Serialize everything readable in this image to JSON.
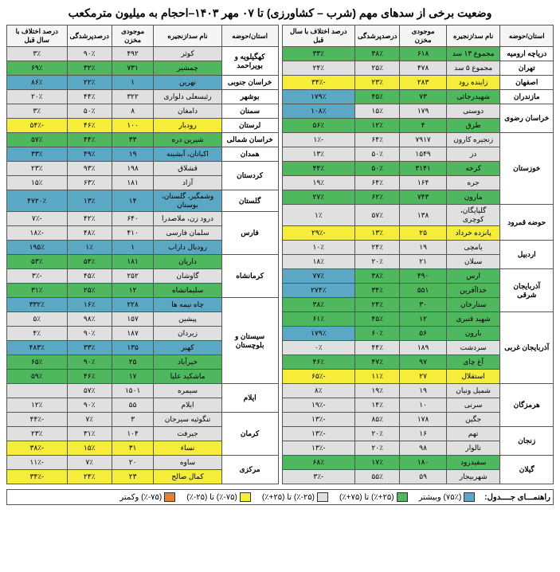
{
  "title": "وضعیت برخی از سدهای مهم (شرب – کشاورزی) تا ۰۷ مهر ۱۴۰۳–احجام به میلیون مترمکعب",
  "headers": {
    "province": "استان/حوضه",
    "dam": "نام سد/زنجیره",
    "volume": "موجودی مخزن",
    "fill": "درصدپرشدگی",
    "diff": "درصد اختلاف با سال قبل"
  },
  "colors": {
    "blue": "#5ba8c4",
    "green": "#4fb85f",
    "gray": "#e0e0e0",
    "yellow": "#f5ed3a",
    "orange": "#e08030"
  },
  "legend": {
    "label": "راهنمـــای جــــدول:",
    "items": [
      {
        "txt": "(۷۵٪) وبیشتر",
        "c": "blue"
      },
      {
        "txt": "(۲۵+٪) تا (۷۵+٪)",
        "c": "green"
      },
      {
        "txt": "(۲۵-٪) تا (۲۵+٪)",
        "c": "gray"
      },
      {
        "txt": "(۷۵-٪) تا (۲۵-٪)",
        "c": "yellow"
      },
      {
        "txt": "(۷۵-٪) وکمتر",
        "c": "orange"
      }
    ]
  },
  "right": [
    {
      "prov": "دریاچه ارومیه",
      "rows": [
        {
          "n": "مجموع ۱۳ سد",
          "v": "۶۱۸",
          "f": "۳۸٪",
          "d": "۳۳٪",
          "cv": "green",
          "cf": "green",
          "cd": "green"
        }
      ]
    },
    {
      "prov": "تهران",
      "rows": [
        {
          "n": "مجموع ۵ سد",
          "v": "۴۷۸",
          "f": "۲۵٪",
          "d": "۲۴٪",
          "cv": "gray",
          "cf": "gray",
          "cd": "gray"
        }
      ]
    },
    {
      "prov": "اصفهان",
      "rows": [
        {
          "n": "زاینده رود",
          "v": "۲۸۳",
          "f": "۲۳٪",
          "d": "-۳۴٪",
          "cv": "yellow",
          "cf": "yellow",
          "cd": "yellow"
        }
      ]
    },
    {
      "prov": "مازندران",
      "rows": [
        {
          "n": "شهیدرجائی",
          "v": "۷۳",
          "f": "۴۵٪",
          "d": "۱۷۹٪",
          "cv": "green",
          "cf": "green",
          "cd": "blue"
        }
      ]
    },
    {
      "prov": "خراسان رضوی",
      "rows": [
        {
          "n": "دوستی",
          "v": "۱۷۹",
          "f": "۱۵٪",
          "d": "۱۰۸٪",
          "cv": "gray",
          "cf": "gray",
          "cd": "blue"
        },
        {
          "n": "طرق",
          "v": "۴",
          "f": "۱۲٪",
          "d": "۵۶٪",
          "cv": "green",
          "cf": "green",
          "cd": "green"
        }
      ]
    },
    {
      "prov": "خوزستان",
      "rows": [
        {
          "n": "زنجیره کارون",
          "v": "۷۹۱۷",
          "f": "۶۴٪",
          "d": "-۱٪",
          "cv": "gray",
          "cf": "gray",
          "cd": "gray"
        },
        {
          "n": "دز",
          "v": "۱۵۴۹",
          "f": "۵۰٪",
          "d": "۱۳٪",
          "cv": "gray",
          "cf": "gray",
          "cd": "gray"
        },
        {
          "n": "کرخه",
          "v": "۳۱۴۱",
          "f": "۵۰٪",
          "d": "۴۴٪",
          "cv": "green",
          "cf": "green",
          "cd": "green"
        },
        {
          "n": "جره",
          "v": "۱۶۴",
          "f": "۶۴٪",
          "d": "۱۹٪",
          "cv": "gray",
          "cf": "gray",
          "cd": "gray"
        },
        {
          "n": "مارون",
          "v": "۷۴۳",
          "f": "۶۲٪",
          "d": "۲۷٪",
          "cv": "green",
          "cf": "green",
          "cd": "green"
        }
      ]
    },
    {
      "prov": "حوضه قمرود",
      "rows": [
        {
          "n": "گلپایگان، کوچری",
          "v": "۱۳۸",
          "f": "۵۷٪",
          "d": "۱٪",
          "cv": "gray",
          "cf": "gray",
          "cd": "gray"
        },
        {
          "n": "پانزده خرداد",
          "v": "۲۵",
          "f": "۱۳٪",
          "d": "-۲۹٪",
          "cv": "yellow",
          "cf": "yellow",
          "cd": "yellow"
        }
      ]
    },
    {
      "prov": "اردبیل",
      "rows": [
        {
          "n": "یامچی",
          "v": "۱۹",
          "f": "۲۴٪",
          "d": "۱۰٪",
          "cv": "gray",
          "cf": "gray",
          "cd": "gray"
        },
        {
          "n": "سبلان",
          "v": "۲۱",
          "f": "۲۰٪",
          "d": "۱۸٪",
          "cv": "gray",
          "cf": "gray",
          "cd": "gray"
        }
      ]
    },
    {
      "prov": "آذربایجان شرقی",
      "rows": [
        {
          "n": "ارس",
          "v": "۴۹۰",
          "f": "۳۸٪",
          "d": "۷۷٪",
          "cv": "green",
          "cf": "green",
          "cd": "blue"
        },
        {
          "n": "خداآفرین",
          "v": "۵۵۱",
          "f": "۳۴٪",
          "d": "۲۷۴٪",
          "cv": "green",
          "cf": "green",
          "cd": "blue"
        },
        {
          "n": "ستارخان",
          "v": "۳۰",
          "f": "۲۴٪",
          "d": "۳۸٪",
          "cv": "green",
          "cf": "green",
          "cd": "green"
        }
      ]
    },
    {
      "prov": "آذربایجان غربی",
      "rows": [
        {
          "n": "شهید قنبری",
          "v": "۱۲",
          "f": "۴۵٪",
          "d": "۶۱٪",
          "cv": "green",
          "cf": "green",
          "cd": "green"
        },
        {
          "n": "بارون",
          "v": "۵۶",
          "f": "۶۰٪",
          "d": "۱۷۹٪",
          "cv": "green",
          "cf": "green",
          "cd": "blue"
        },
        {
          "n": "سردشت",
          "v": "۱۸۹",
          "f": "۴۴٪",
          "d": "۰٪",
          "cv": "gray",
          "cf": "gray",
          "cd": "gray"
        },
        {
          "n": "آغ چای",
          "v": "۹۷",
          "f": "۴۷٪",
          "d": "۴۶٪",
          "cv": "green",
          "cf": "green",
          "cd": "green"
        },
        {
          "n": "استقلال",
          "v": "۲۷",
          "f": "۱۱٪",
          "d": "-۶۵٪",
          "cv": "yellow",
          "cf": "yellow",
          "cd": "yellow"
        }
      ]
    },
    {
      "prov": "هرمزگان",
      "rows": [
        {
          "n": "شمیل ونیان",
          "v": "۱۹",
          "f": "۱۹٪",
          "d": "۸٪",
          "cv": "gray",
          "cf": "gray",
          "cd": "gray"
        },
        {
          "n": "سرنی",
          "v": "۱۰",
          "f": "۱۴٪",
          "d": "-۱۹٪",
          "cv": "gray",
          "cf": "gray",
          "cd": "gray"
        },
        {
          "n": "جگین",
          "v": "۱۷۸",
          "f": "۸۵٪",
          "d": "-۱۳٪",
          "cv": "gray",
          "cf": "gray",
          "cd": "gray"
        }
      ]
    },
    {
      "prov": "زنجان",
      "rows": [
        {
          "n": "تهم",
          "v": "۱۶",
          "f": "۲۰٪",
          "d": "-۱۳٪",
          "cv": "gray",
          "cf": "gray",
          "cd": "gray"
        },
        {
          "n": "تالوار",
          "v": "۹۸",
          "f": "۲۰٪",
          "d": "-۱۳٪",
          "cv": "gray",
          "cf": "gray",
          "cd": "gray"
        }
      ]
    },
    {
      "prov": "گیلان",
      "rows": [
        {
          "n": "سفیدرود",
          "v": "۱۸۰",
          "f": "۱۷٪",
          "d": "۶۸٪",
          "cv": "green",
          "cf": "green",
          "cd": "green"
        },
        {
          "n": "شهربیجار",
          "v": "۵۹",
          "f": "۵۵٪",
          "d": "-۳٪",
          "cv": "gray",
          "cf": "gray",
          "cd": "gray"
        }
      ]
    }
  ],
  "left": [
    {
      "prov": "کهگیلویه و بویراحمد",
      "rows": [
        {
          "n": "کوثر",
          "v": "۴۹۲",
          "f": "۹۰٪",
          "d": "۳٪",
          "cv": "gray",
          "cf": "gray",
          "cd": "gray"
        },
        {
          "n": "چمشیر",
          "v": "۷۳۱",
          "f": "۳۲٪",
          "d": "۶۹٪",
          "cv": "green",
          "cf": "green",
          "cd": "green"
        }
      ]
    },
    {
      "prov": "خراسان جنوبی",
      "rows": [
        {
          "n": "نهرین",
          "v": "۱",
          "f": "۲۲٪",
          "d": "۸۶٪",
          "cv": "blue",
          "cf": "blue",
          "cd": "blue"
        }
      ]
    },
    {
      "prov": "بوشهر",
      "rows": [
        {
          "n": "رئیسعلی دلواری",
          "v": "۳۲۲",
          "f": "۴۴٪",
          "d": "۲۰٪",
          "cv": "gray",
          "cf": "gray",
          "cd": "gray"
        }
      ]
    },
    {
      "prov": "سمنان",
      "rows": [
        {
          "n": "دامغان",
          "v": "۸",
          "f": "۵۰٪",
          "d": "۳٪",
          "cv": "gray",
          "cf": "gray",
          "cd": "gray"
        }
      ]
    },
    {
      "prov": "لرستان",
      "rows": [
        {
          "n": "رودبار",
          "v": "۱۰۰",
          "f": "۴۶٪",
          "d": "-۵۴٪",
          "cv": "yellow",
          "cf": "yellow",
          "cd": "yellow"
        }
      ]
    },
    {
      "prov": "خراسان شمالی",
      "rows": [
        {
          "n": "شیرین دره",
          "v": "۳۳",
          "f": "۴۴٪",
          "d": "۵۷٪",
          "cv": "green",
          "cf": "green",
          "cd": "green"
        }
      ]
    },
    {
      "prov": "همدان",
      "rows": [
        {
          "n": "اکباتان، آبشینه",
          "v": "۱۹",
          "f": "۴۹٪",
          "d": "۳۳٪",
          "cv": "blue",
          "cf": "blue",
          "cd": "blue"
        }
      ]
    },
    {
      "prov": "کردستان",
      "rows": [
        {
          "n": "قشلاق",
          "v": "۱۹۸",
          "f": "۹۳٪",
          "d": "۲۳٪",
          "cv": "gray",
          "cf": "gray",
          "cd": "gray"
        },
        {
          "n": "آزاد",
          "v": "۱۸۱",
          "f": "۶۳٪",
          "d": "۱۵٪",
          "cv": "gray",
          "cf": "gray",
          "cd": "gray"
        }
      ]
    },
    {
      "prov": "گلستان",
      "rows": [
        {
          "n": "وشمگیر، گلستان، بوستان",
          "v": "۱۴",
          "f": "۱۳٪",
          "d": "۴۷۲۰٪",
          "cv": "blue",
          "cf": "blue",
          "cd": "blue"
        }
      ]
    },
    {
      "prov": "فارس",
      "rows": [
        {
          "n": "درود زن، ملاصدرا",
          "v": "۶۴۰",
          "f": "۴۲٪",
          "d": "-۷٪",
          "cv": "gray",
          "cf": "gray",
          "cd": "gray"
        },
        {
          "n": "سلمان فارسی",
          "v": "۴۱۰",
          "f": "۴۸٪",
          "d": "-۱۸٪",
          "cv": "gray",
          "cf": "gray",
          "cd": "gray"
        },
        {
          "n": "رودبال داراب",
          "v": "۱",
          "f": "۱٪",
          "d": "۱۹۵٪",
          "cv": "blue",
          "cf": "blue",
          "cd": "blue"
        }
      ]
    },
    {
      "prov": "کرمانشاه",
      "rows": [
        {
          "n": "داریان",
          "v": "۱۸۱",
          "f": "۵۴٪",
          "d": "۵۳٪",
          "cv": "green",
          "cf": "green",
          "cd": "green"
        },
        {
          "n": "گاوشان",
          "v": "۲۵۲",
          "f": "۴۵٪",
          "d": "-۳٪",
          "cv": "gray",
          "cf": "gray",
          "cd": "gray"
        },
        {
          "n": "سلیمانشاه",
          "v": "۱۲",
          "f": "۲۵٪",
          "d": "۳۱٪",
          "cv": "green",
          "cf": "green",
          "cd": "green"
        }
      ]
    },
    {
      "prov": "سیستان و بلوچستان",
      "rows": [
        {
          "n": "چاه نیمه ها",
          "v": "۲۲۸",
          "f": "۱۶٪",
          "d": "۳۳۲٪",
          "cv": "blue",
          "cf": "blue",
          "cd": "blue"
        },
        {
          "n": "پیشین",
          "v": "۱۵۷",
          "f": "۹۸٪",
          "d": "۵٪",
          "cv": "gray",
          "cf": "gray",
          "cd": "gray"
        },
        {
          "n": "زیردان",
          "v": "۱۸۷",
          "f": "۹۰٪",
          "d": "۴٪",
          "cv": "gray",
          "cf": "gray",
          "cd": "gray"
        },
        {
          "n": "کهیر",
          "v": "۱۳۵",
          "f": "۳۳٪",
          "d": "۴۸۳٪",
          "cv": "blue",
          "cf": "blue",
          "cd": "blue"
        },
        {
          "n": "خیرآباد",
          "v": "۲۵",
          "f": "۹۰٪",
          "d": "۶۵٪",
          "cv": "green",
          "cf": "green",
          "cd": "green"
        },
        {
          "n": "ماشکید علیا",
          "v": "۱۷",
          "f": "۴۶٪",
          "d": "۵۹٪",
          "cv": "green",
          "cf": "green",
          "cd": "green"
        }
      ]
    },
    {
      "prov": "ایلام",
      "rows": [
        {
          "n": "سیمره",
          "v": "۱۵۰۱",
          "f": "۵۷٪",
          "d": "",
          "cv": "gray",
          "cf": "gray",
          "cd": "gray"
        },
        {
          "n": "ایلام",
          "v": "۵۵",
          "f": "۹۰٪",
          "d": "۱۲٪",
          "cv": "gray",
          "cf": "gray",
          "cd": "gray"
        }
      ]
    },
    {
      "prov": "کرمان",
      "rows": [
        {
          "n": "تنگوئیه سیرجان",
          "v": "۳",
          "f": "۷٪",
          "d": "-۴۴٪",
          "cv": "gray",
          "cf": "gray",
          "cd": "gray"
        },
        {
          "n": "جیرفت",
          "v": "۱۰۴",
          "f": "۳۱٪",
          "d": "۲۳٪",
          "cv": "gray",
          "cf": "gray",
          "cd": "gray"
        },
        {
          "n": "نساء",
          "v": "۳۱",
          "f": "۱۵٪",
          "d": "-۳۸٪",
          "cv": "yellow",
          "cf": "yellow",
          "cd": "yellow"
        }
      ]
    },
    {
      "prov": "مرکزی",
      "rows": [
        {
          "n": "ساوه",
          "v": "۲۰",
          "f": "۷٪",
          "d": "-۱۱٪",
          "cv": "gray",
          "cf": "gray",
          "cd": "gray"
        },
        {
          "n": "کمال صالح",
          "v": "۲۳",
          "f": "۲۴٪",
          "d": "-۳۴٪",
          "cv": "yellow",
          "cf": "yellow",
          "cd": "yellow"
        }
      ]
    }
  ]
}
